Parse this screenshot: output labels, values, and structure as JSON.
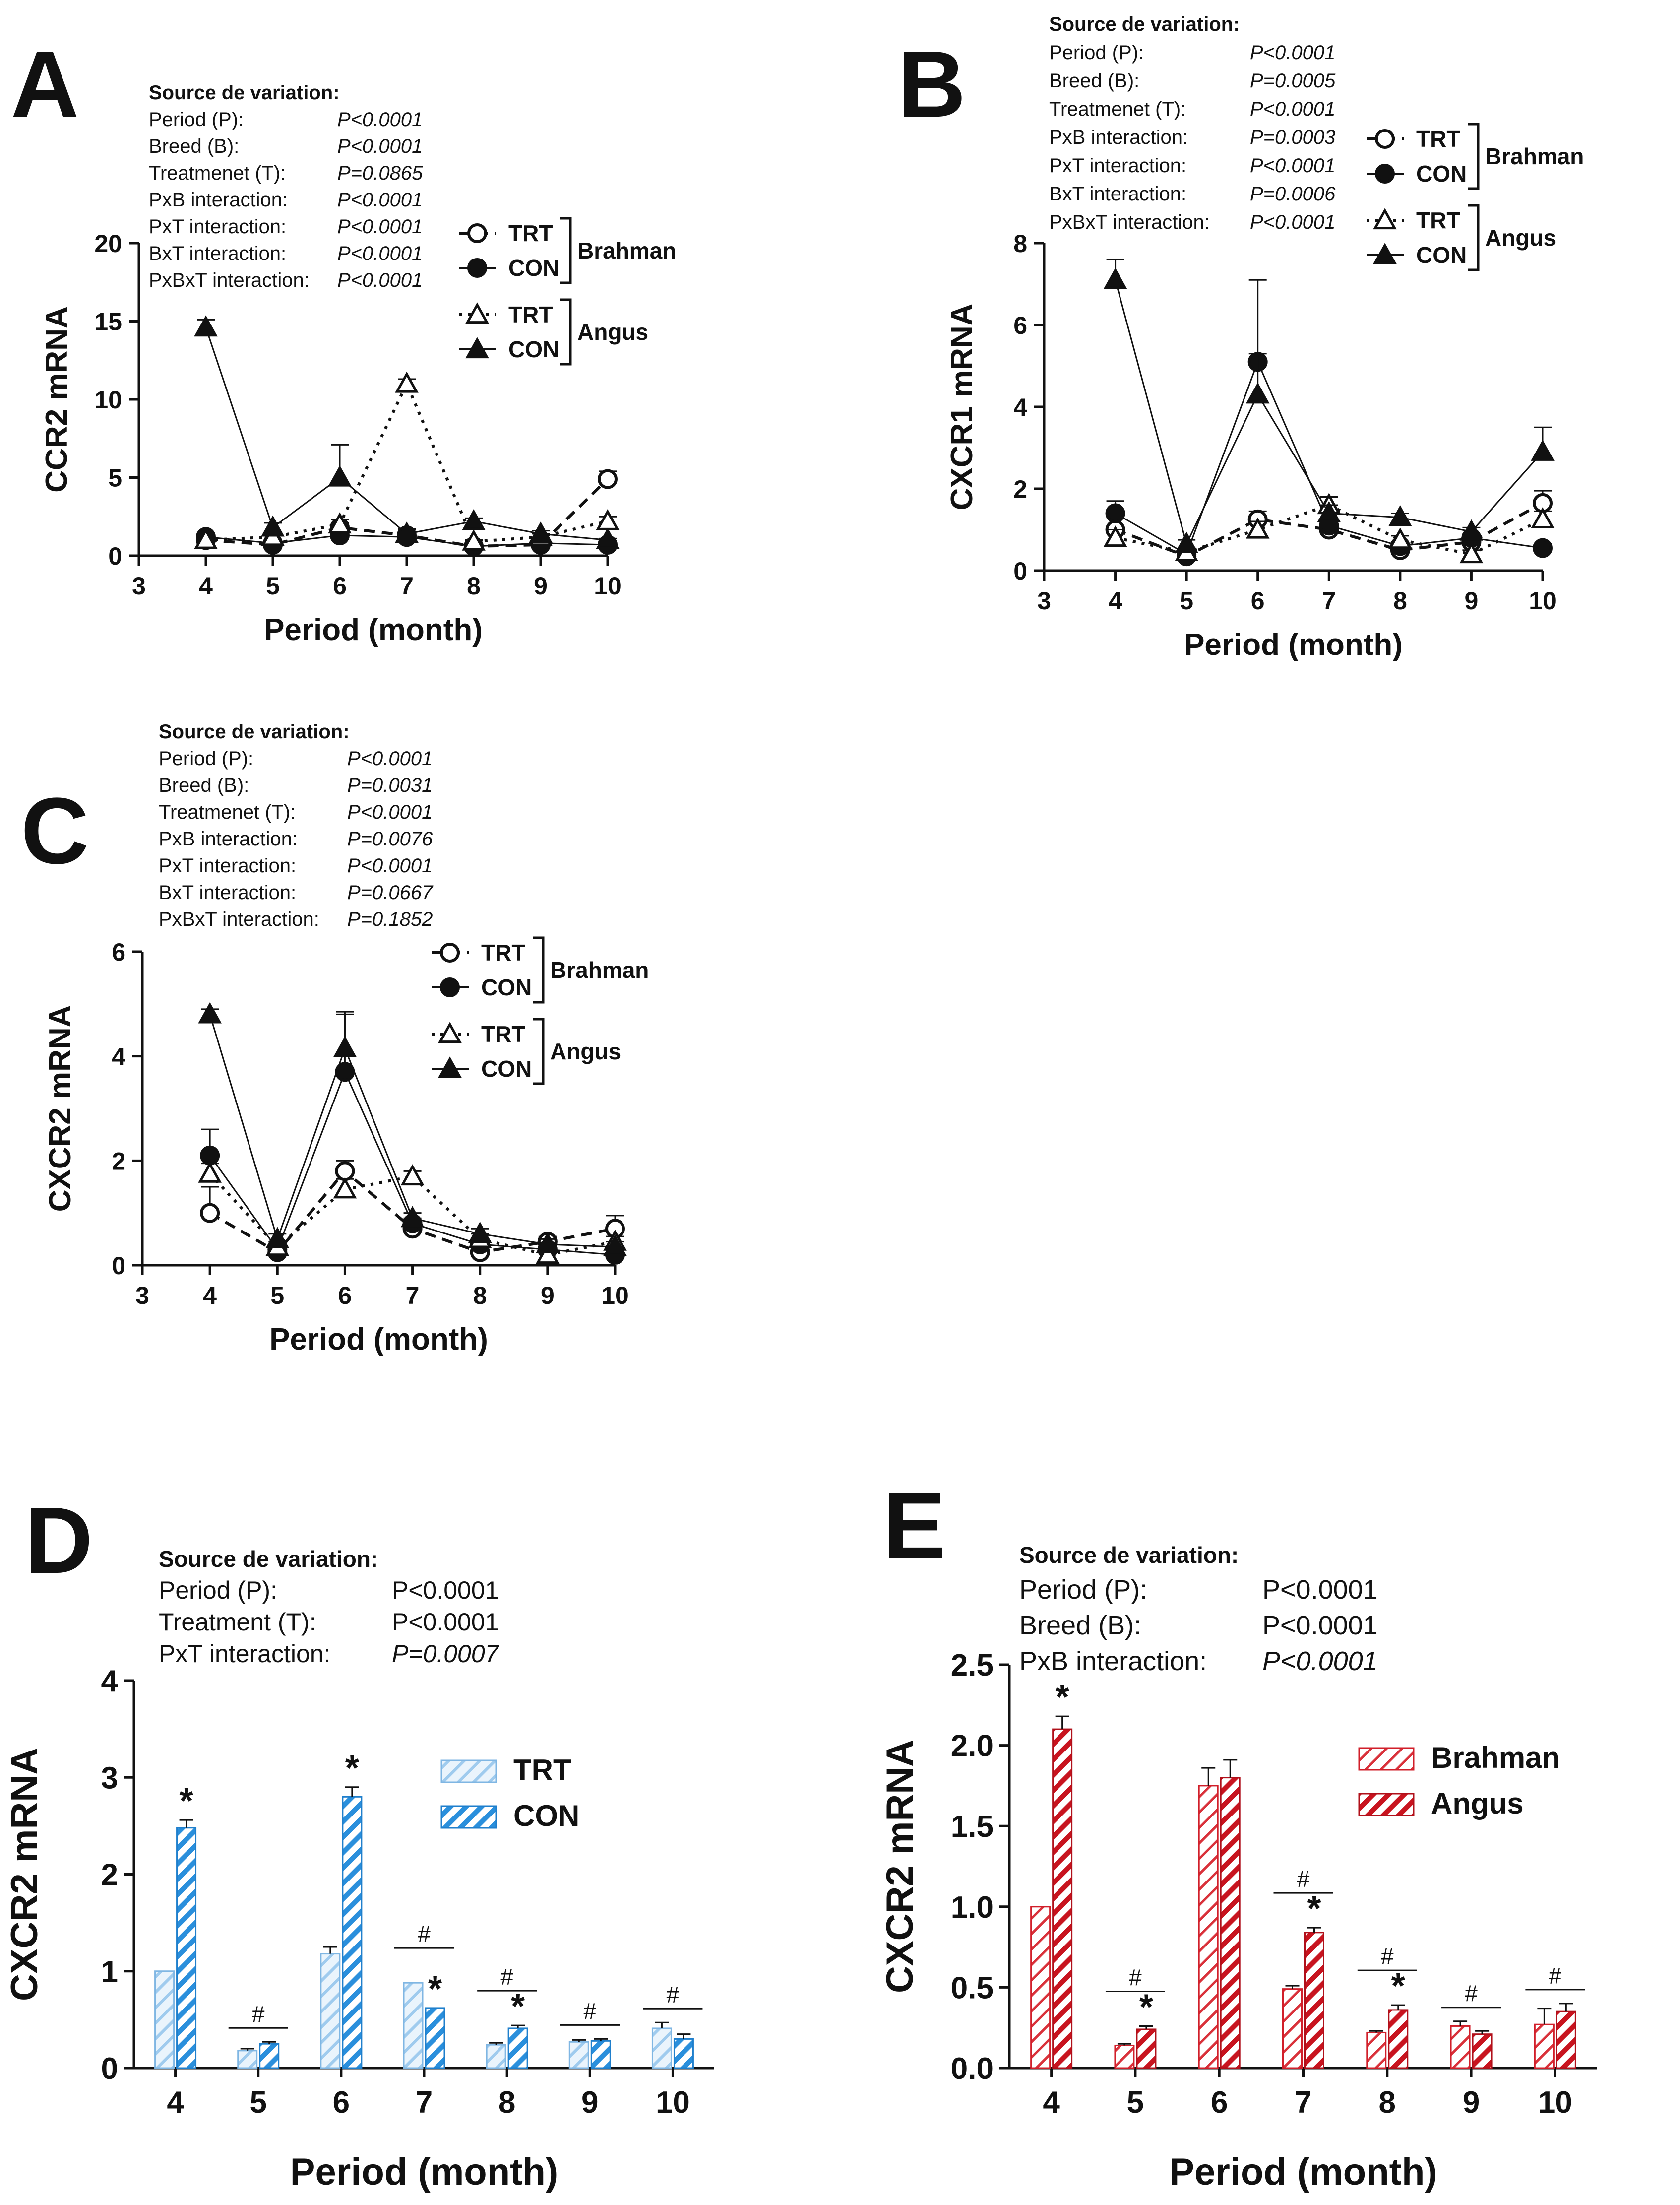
{
  "figure": {
    "background": "#ffffff",
    "ink": "#111111",
    "blue": "#3d9be0",
    "red": "#d11f2a"
  },
  "chart_data": [
    {
      "panel": "A",
      "type": "line",
      "ylabel": "CCR2 mRNA",
      "xlabel": "Period (month)",
      "xlim": [
        3,
        10
      ],
      "ylim": [
        0,
        20
      ],
      "xticks": [
        "3",
        "4",
        "5",
        "6",
        "7",
        "8",
        "9",
        "10"
      ],
      "yticks": [
        "0",
        "5",
        "10",
        "15",
        "20"
      ],
      "stats_title": "Source de variation:",
      "stats": [
        {
          "label": "Period (P):",
          "value": "P<0.0001"
        },
        {
          "label": "Breed (B):",
          "value": "P<0.0001"
        },
        {
          "label": "Treatmenet (T):",
          "value": "P=0.0865"
        },
        {
          "label": "PxB interaction:",
          "value": "P<0.0001"
        },
        {
          "label": "PxT interaction:",
          "value": "P<0.0001"
        },
        {
          "label": "BxT interaction:",
          "value": "P<0.0001"
        },
        {
          "label": "PxBxT interaction:",
          "value": "P<0.0001"
        }
      ],
      "legend_groups": [
        {
          "group": "Brahman",
          "entries": [
            {
              "label": "TRT",
              "marker": "circle-open",
              "dash": "dash"
            },
            {
              "label": "CON",
              "marker": "circle-filled",
              "dash": "solid"
            }
          ]
        },
        {
          "group": "Angus",
          "entries": [
            {
              "label": "TRT",
              "marker": "triangle-open",
              "dash": "dot"
            },
            {
              "label": "CON",
              "marker": "triangle-filled",
              "dash": "solid"
            }
          ]
        }
      ],
      "x": [
        4,
        5,
        6,
        7,
        8,
        9,
        10
      ],
      "series": [
        {
          "name": "Brahman TRT",
          "marker": "circle-open",
          "dash": "dash",
          "values": [
            1.0,
            0.7,
            1.8,
            1.3,
            0.6,
            0.7,
            4.9
          ],
          "err": [
            0.2,
            0.1,
            0.3,
            0.2,
            0.1,
            0.1,
            0.5
          ]
        },
        {
          "name": "Brahman CON",
          "marker": "circle-filled",
          "dash": "solid",
          "values": [
            1.2,
            0.8,
            1.3,
            1.2,
            0.6,
            0.8,
            0.7
          ],
          "err": [
            0.2,
            0.1,
            0.2,
            0.2,
            0.1,
            0.1,
            0.1
          ]
        },
        {
          "name": "Angus TRT",
          "marker": "triangle-open",
          "dash": "dot",
          "values": [
            1.0,
            1.2,
            2.0,
            11.0,
            0.9,
            1.2,
            2.2
          ],
          "err": [
            0.2,
            0.2,
            0.3,
            0.3,
            0.1,
            0.2,
            0.3
          ]
        },
        {
          "name": "Angus CON",
          "marker": "triangle-filled",
          "dash": "solid",
          "values": [
            14.6,
            1.8,
            5.0,
            1.4,
            2.2,
            1.4,
            1.0
          ],
          "err": [
            0.5,
            0.3,
            2.1,
            0.3,
            0.2,
            0.2,
            0.1
          ]
        }
      ]
    },
    {
      "panel": "B",
      "type": "line",
      "ylabel": "CXCR1 mRNA",
      "xlabel": "Period (month)",
      "xlim": [
        3,
        10
      ],
      "ylim": [
        0,
        8
      ],
      "xticks": [
        "3",
        "4",
        "5",
        "6",
        "7",
        "8",
        "9",
        "10"
      ],
      "yticks": [
        "0",
        "2",
        "4",
        "6",
        "8"
      ],
      "stats_title": "Source de variation:",
      "stats": [
        {
          "label": "Period (P):",
          "value": "P<0.0001"
        },
        {
          "label": "Breed (B):",
          "value": "P=0.0005"
        },
        {
          "label": "Treatmenet (T):",
          "value": "P<0.0001"
        },
        {
          "label": "PxB interaction:",
          "value": "P=0.0003"
        },
        {
          "label": "PxT interaction:",
          "value": "P<0.0001"
        },
        {
          "label": "BxT interaction:",
          "value": "P=0.0006"
        },
        {
          "label": "PxBxT interaction:",
          "value": "P<0.0001"
        }
      ],
      "legend_groups": [
        {
          "group": "Brahman",
          "entries": [
            {
              "label": "TRT",
              "marker": "circle-open",
              "dash": "dash"
            },
            {
              "label": "CON",
              "marker": "circle-filled",
              "dash": "solid"
            }
          ]
        },
        {
          "group": "Angus",
          "entries": [
            {
              "label": "TRT",
              "marker": "triangle-open",
              "dash": "dot"
            },
            {
              "label": "CON",
              "marker": "triangle-filled",
              "dash": "solid"
            }
          ]
        }
      ],
      "x": [
        4,
        5,
        6,
        7,
        8,
        9,
        10
      ],
      "series": [
        {
          "name": "Brahman TRT",
          "marker": "circle-open",
          "dash": "dash",
          "values": [
            1.0,
            0.35,
            1.25,
            1.0,
            0.5,
            0.7,
            1.65
          ],
          "err": [
            0.3,
            0.1,
            0.2,
            0.3,
            0.1,
            0.1,
            0.3
          ]
        },
        {
          "name": "Brahman CON",
          "marker": "circle-filled",
          "dash": "solid",
          "values": [
            1.4,
            0.4,
            5.1,
            1.1,
            0.6,
            0.8,
            0.55
          ],
          "err": [
            0.3,
            0.1,
            2.0,
            0.2,
            0.1,
            0.1,
            0.1
          ]
        },
        {
          "name": "Angus TRT",
          "marker": "triangle-open",
          "dash": "dot",
          "values": [
            0.8,
            0.45,
            1.0,
            1.6,
            0.75,
            0.4,
            1.25
          ],
          "err": [
            0.2,
            0.1,
            0.2,
            0.2,
            0.1,
            0.1,
            0.2
          ]
        },
        {
          "name": "Angus CON",
          "marker": "triangle-filled",
          "dash": "solid",
          "values": [
            7.1,
            0.65,
            4.3,
            1.4,
            1.3,
            0.95,
            2.9
          ],
          "err": [
            0.5,
            0.1,
            1.0,
            0.2,
            0.1,
            0.1,
            0.6
          ]
        }
      ]
    },
    {
      "panel": "C",
      "type": "line",
      "ylabel": "CXCR2 mRNA",
      "xlabel": "Period (month)",
      "xlim": [
        3,
        10
      ],
      "ylim": [
        0,
        6
      ],
      "xticks": [
        "3",
        "4",
        "5",
        "6",
        "7",
        "8",
        "9",
        "10"
      ],
      "yticks": [
        "0",
        "2",
        "4",
        "6"
      ],
      "stats_title": "Source de variation:",
      "stats": [
        {
          "label": "Period (P):",
          "value": "P<0.0001"
        },
        {
          "label": "Breed (B):",
          "value": "P=0.0031"
        },
        {
          "label": "Treatmenet (T):",
          "value": "P<0.0001"
        },
        {
          "label": "PxB interaction:",
          "value": "P=0.0076"
        },
        {
          "label": "PxT interaction:",
          "value": "P<0.0001"
        },
        {
          "label": "BxT interaction:",
          "value": "P=0.0667"
        },
        {
          "label": "PxBxT interaction:",
          "value": "P=0.1852"
        }
      ],
      "legend_groups": [
        {
          "group": "Brahman",
          "entries": [
            {
              "label": "TRT",
              "marker": "circle-open",
              "dash": "dash"
            },
            {
              "label": "CON",
              "marker": "circle-filled",
              "dash": "solid"
            }
          ]
        },
        {
          "group": "Angus",
          "entries": [
            {
              "label": "TRT",
              "marker": "triangle-open",
              "dash": "dot"
            },
            {
              "label": "CON",
              "marker": "triangle-filled",
              "dash": "solid"
            }
          ]
        }
      ],
      "x": [
        4,
        5,
        6,
        7,
        8,
        9,
        10
      ],
      "series": [
        {
          "name": "Brahman TRT",
          "marker": "circle-open",
          "dash": "dash",
          "values": [
            1.0,
            0.25,
            1.8,
            0.7,
            0.25,
            0.45,
            0.7
          ],
          "err": [
            0.5,
            0.1,
            0.2,
            0.1,
            0.05,
            0.1,
            0.25
          ]
        },
        {
          "name": "Brahman CON",
          "marker": "circle-filled",
          "dash": "solid",
          "values": [
            2.1,
            0.3,
            3.7,
            0.8,
            0.4,
            0.3,
            0.2
          ],
          "err": [
            0.5,
            0.1,
            1.1,
            0.1,
            0.1,
            0.05,
            0.05
          ]
        },
        {
          "name": "Angus TRT",
          "marker": "triangle-open",
          "dash": "dot",
          "values": [
            1.75,
            0.35,
            1.45,
            1.7,
            0.5,
            0.2,
            0.45
          ],
          "err": [
            0.2,
            0.1,
            0.2,
            0.1,
            0.1,
            0.05,
            0.1
          ]
        },
        {
          "name": "Angus CON",
          "marker": "triangle-filled",
          "dash": "solid",
          "values": [
            4.8,
            0.5,
            4.15,
            0.9,
            0.6,
            0.4,
            0.35
          ],
          "err": [
            0.1,
            0.1,
            0.7,
            0.1,
            0.1,
            0.1,
            0.1
          ]
        }
      ]
    },
    {
      "panel": "D",
      "type": "bar",
      "ylabel": "CXCR2 mRNA",
      "xlabel": "Period (month)",
      "ylim": [
        0,
        4
      ],
      "yticks": [
        "0",
        "1",
        "2",
        "3",
        "4"
      ],
      "categories": [
        "4",
        "5",
        "6",
        "7",
        "8",
        "9",
        "10"
      ],
      "stats_title": "Source de variation:",
      "stats": [
        {
          "label": "Period (P):",
          "value": "P<0.0001"
        },
        {
          "label": "Treatment (T):",
          "value": "P<0.0001"
        },
        {
          "label": "PxT interaction:",
          "value": "P=0.0007"
        }
      ],
      "legend": [
        {
          "label": "TRT",
          "style": "light"
        },
        {
          "label": "CON",
          "style": "dark"
        }
      ],
      "series": [
        {
          "name": "TRT",
          "values": [
            1.0,
            0.18,
            1.18,
            0.88,
            0.24,
            0.27,
            0.41
          ],
          "err": [
            0.0,
            0.02,
            0.07,
            0.0,
            0.02,
            0.02,
            0.06
          ]
        },
        {
          "name": "CON",
          "values": [
            2.48,
            0.25,
            2.8,
            0.62,
            0.41,
            0.28,
            0.3
          ],
          "err": [
            0.08,
            0.02,
            0.1,
            0.0,
            0.03,
            0.02,
            0.05
          ]
        }
      ],
      "star_on_con": [
        true,
        false,
        true,
        true,
        true,
        false,
        false
      ],
      "hash_over": [
        false,
        true,
        false,
        true,
        true,
        true,
        true
      ],
      "star_symbol": "*",
      "hash_symbol": "#"
    },
    {
      "panel": "E",
      "type": "bar",
      "ylabel": "CXCR2 mRNA",
      "xlabel": "Period (month)",
      "ylim": [
        0,
        2.5
      ],
      "yticks": [
        "0.0",
        "0.5",
        "1.0",
        "1.5",
        "2.0",
        "2.5"
      ],
      "categories": [
        "4",
        "5",
        "6",
        "7",
        "8",
        "9",
        "10"
      ],
      "stats_title": "Source de variation:",
      "stats": [
        {
          "label": "Period (P):",
          "value": "P<0.0001"
        },
        {
          "label": "Breed (B):",
          "value": "P<0.0001"
        },
        {
          "label": "PxB interaction:",
          "value": "P<0.0001"
        }
      ],
      "legend": [
        {
          "label": "Brahman",
          "style": "light"
        },
        {
          "label": "Angus",
          "style": "dark"
        }
      ],
      "series": [
        {
          "name": "Brahman",
          "values": [
            1.0,
            0.14,
            1.75,
            0.49,
            0.22,
            0.26,
            0.27
          ],
          "err": [
            0.0,
            0.01,
            0.11,
            0.02,
            0.01,
            0.03,
            0.1
          ]
        },
        {
          "name": "Angus",
          "values": [
            2.1,
            0.24,
            1.8,
            0.84,
            0.36,
            0.21,
            0.35
          ],
          "err": [
            0.08,
            0.02,
            0.11,
            0.03,
            0.03,
            0.02,
            0.05
          ]
        }
      ],
      "star_on_con": [
        true,
        true,
        false,
        true,
        true,
        false,
        false
      ],
      "hash_over": [
        false,
        true,
        false,
        true,
        true,
        true,
        true
      ],
      "star_symbol": "*",
      "hash_symbol": "#"
    }
  ]
}
